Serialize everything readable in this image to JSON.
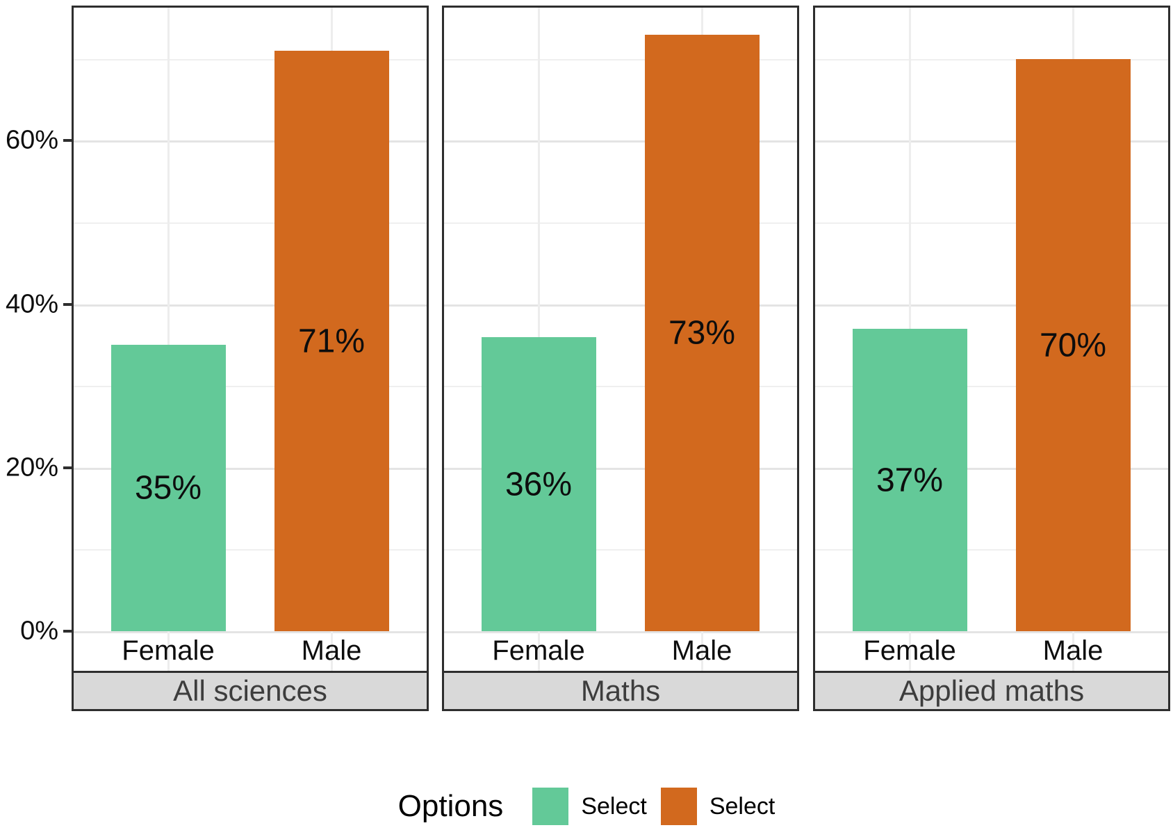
{
  "chart_data": {
    "type": "bar",
    "title": "",
    "categories": [
      "Female",
      "Male"
    ],
    "bar_colors": [
      "#63c998",
      "#d2691e"
    ],
    "facets": [
      {
        "label": "All sciences",
        "bars": [
          {
            "category": "Female",
            "value": 35,
            "label": "35%"
          },
          {
            "category": "Male",
            "value": 71,
            "label": "71%"
          }
        ]
      },
      {
        "label": "Maths",
        "bars": [
          {
            "category": "Female",
            "value": 36,
            "label": "36%"
          },
          {
            "category": "Male",
            "value": 73,
            "label": "73%"
          }
        ]
      },
      {
        "label": "Applied maths",
        "bars": [
          {
            "category": "Female",
            "value": 37,
            "label": "37%"
          },
          {
            "category": "Male",
            "value": 70,
            "label": "70%"
          }
        ]
      }
    ],
    "y_axis": {
      "ticks": [
        {
          "value": 0,
          "label": "0%"
        },
        {
          "value": 20,
          "label": "20%"
        },
        {
          "value": 40,
          "label": "40%"
        },
        {
          "value": 60,
          "label": "60%"
        }
      ],
      "minor_gridlines": [
        10,
        30,
        50,
        70
      ],
      "max": 76
    },
    "grid": true,
    "legend": {
      "title": "Options",
      "position": "bottom",
      "entries": [
        {
          "label": "Select",
          "color": "#63c998"
        },
        {
          "label": "Select",
          "color": "#d2691e"
        }
      ]
    }
  }
}
